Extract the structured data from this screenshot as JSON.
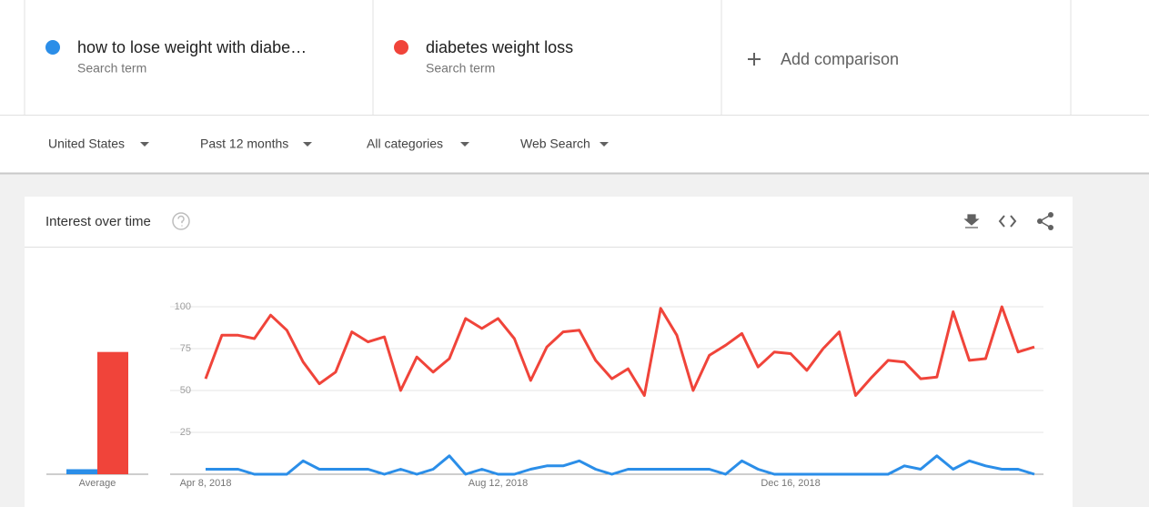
{
  "chart_data": {
    "type": "line",
    "series": [
      {
        "name": "how to lose weight with diabe…",
        "color": "#2b8ee8",
        "values": [
          3,
          3,
          3,
          0,
          0,
          0,
          8,
          3,
          3,
          3,
          3,
          0,
          3,
          0,
          3,
          11,
          0,
          3,
          0,
          0,
          3,
          5,
          5,
          8,
          3,
          0,
          3,
          3,
          3,
          3,
          3,
          3,
          0,
          8,
          3,
          0,
          0,
          0,
          0,
          0,
          0,
          0,
          0,
          5,
          3,
          11,
          3,
          8,
          5,
          3,
          3,
          0
        ]
      },
      {
        "name": "diabetes weight loss",
        "color": "#f0443a",
        "values": [
          57,
          83,
          83,
          81,
          95,
          86,
          67,
          54,
          61,
          85,
          79,
          82,
          50,
          70,
          61,
          69,
          93,
          87,
          93,
          81,
          56,
          76,
          85,
          86,
          68,
          57,
          63,
          47,
          99,
          83,
          50,
          71,
          77,
          84,
          64,
          73,
          72,
          62,
          75,
          85,
          47,
          58,
          68,
          67,
          57,
          58,
          97,
          68,
          69,
          100,
          73,
          76
        ]
      }
    ],
    "categories": [
      "Apr 8, 2018",
      null,
      null,
      null,
      null,
      null,
      null,
      null,
      null,
      null,
      null,
      null,
      null,
      null,
      null,
      null,
      null,
      null,
      "Aug 12, 2018",
      null,
      null,
      null,
      null,
      null,
      null,
      null,
      null,
      null,
      null,
      null,
      null,
      null,
      null,
      null,
      null,
      null,
      "Dec 16, 2018",
      null,
      null,
      null,
      null,
      null,
      null,
      null,
      null,
      null,
      null,
      null,
      null,
      null,
      null,
      null
    ],
    "ylim": [
      0,
      100
    ],
    "yticks": [
      25,
      50,
      75,
      100
    ],
    "grid": true,
    "average_label": "Average",
    "average_values": [
      3,
      73
    ]
  },
  "term_caption": "Search term",
  "add_comparison": "Add comparison",
  "filters": [
    "United States",
    "Past 12 months",
    "All categories",
    "Web Search"
  ],
  "card_title": "Interest over time"
}
